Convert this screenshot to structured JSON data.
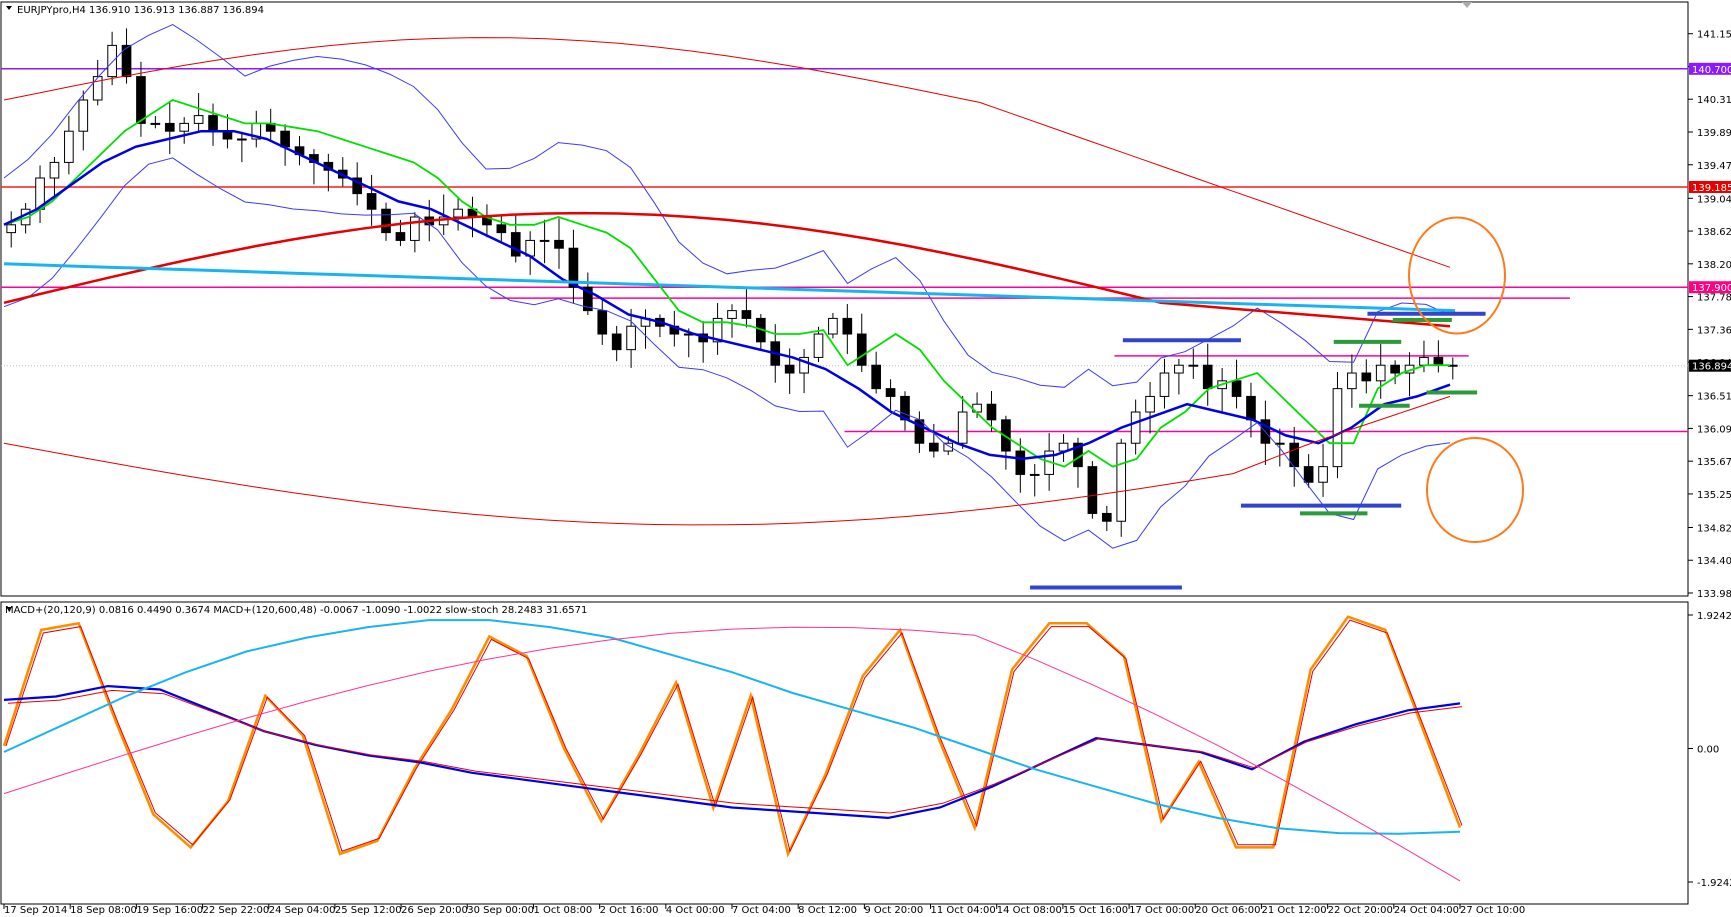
{
  "header": {
    "main_info": "EURJPYpro,H4  136.910 136.913 136.887 136.894",
    "indicator_info": "MACD+(20,120,9) 0.0816 0.4490 0.3674  MACD+(120,600,48) -0.0067 -1.0090 -1.0022  slow-stoch 28.2483 31.6571"
  },
  "colors": {
    "background": "#ffffff",
    "bull_candle": "#ffffff",
    "bear_candle": "#000000",
    "ema_fast": "#00e000",
    "ema_mid": "#0000e6",
    "ema_slow_red": "#e60000",
    "cyan_line": "#19b4f0",
    "magenta_level": "#ff0099",
    "purple_level": "#8c1aff",
    "red_level": "#ff1a1a",
    "orange_circle": "#ff7a1a",
    "price_label_bg": "#000000",
    "purple_label_bg": "#8c1aff",
    "red_label_bg": "#e60000",
    "magenta_label_bg": "#ff0080"
  },
  "chart_data": [
    {
      "type": "candlestick",
      "symbol": "EURJPYpro",
      "timeframe": "H4",
      "ylim": [
        133.98,
        141.3
      ],
      "y_ticks": [
        "141.150",
        "140.730",
        "140.310",
        "139.890",
        "139.470",
        "139.040",
        "138.620",
        "138.200",
        "137.780",
        "137.360",
        "136.940",
        "136.510",
        "136.090",
        "135.670",
        "135.250",
        "134.820",
        "134.400",
        "133.980"
      ],
      "x_ticks": [
        "17 Sep 2014",
        "18 Sep 08:00",
        "19 Sep 16:00",
        "22 Sep 22:00",
        "24 Sep 04:00",
        "25 Sep 12:00",
        "26 Sep 20:00",
        "30 Sep 00:00",
        "1 Oct 08:00",
        "2 Oct 16:00",
        "4 Oct 00:00",
        "7 Oct 04:00",
        "8 Oct 12:00",
        "9 Oct 20:00",
        "11 Oct 04:00",
        "14 Oct 08:00",
        "15 Oct 16:00",
        "17 Oct 00:00",
        "20 Oct 06:00",
        "21 Oct 12:00",
        "22 Oct 20:00",
        "24 Oct 04:00",
        "27 Oct 10:00"
      ],
      "price_tags": [
        {
          "value": 140.7,
          "text": "140.700",
          "color": "#8c1aff"
        },
        {
          "value": 139.185,
          "text": "139.185",
          "color": "#e60000"
        },
        {
          "value": 137.9,
          "text": "137.900",
          "color": "#ff0080"
        },
        {
          "value": 136.894,
          "text": "136.894",
          "color": "#000000"
        }
      ],
      "horizontal_levels": [
        {
          "value": 140.7,
          "color": "#8c1aff",
          "x_from": 0.0,
          "x_to": 1.0
        },
        {
          "value": 139.185,
          "color": "#ff1a1a",
          "x_from": 0.0,
          "x_to": 1.0
        },
        {
          "value": 137.9,
          "color": "#ff0099",
          "x_from": 0.0,
          "x_to": 1.0
        },
        {
          "value": 137.76,
          "color": "#ff0099",
          "x_from": 0.29,
          "x_to": 0.93
        },
        {
          "value": 137.02,
          "color": "#ff0099",
          "x_from": 0.66,
          "x_to": 0.87
        },
        {
          "value": 136.05,
          "color": "#ff0099",
          "x_from": 0.5,
          "x_to": 1.0
        },
        {
          "value": 136.894,
          "color": "#c0c0c0",
          "dotted": true,
          "x_from": 0.0,
          "x_to": 1.0
        }
      ],
      "marker_bars": [
        {
          "value": 137.22,
          "color": "#3344cc",
          "x_from": 0.665,
          "x_to": 0.735
        },
        {
          "value": 137.56,
          "color": "#3344cc",
          "x_from": 0.81,
          "x_to": 0.88
        },
        {
          "value": 137.2,
          "color": "#2a9a3a",
          "x_from": 0.79,
          "x_to": 0.83
        },
        {
          "value": 137.48,
          "color": "#2a9a3a",
          "x_from": 0.825,
          "x_to": 0.86
        },
        {
          "value": 136.55,
          "color": "#2a9a3a",
          "x_from": 0.845,
          "x_to": 0.875
        },
        {
          "value": 136.38,
          "color": "#2a9a3a",
          "x_from": 0.805,
          "x_to": 0.835
        },
        {
          "value": 135.1,
          "color": "#3344cc",
          "x_from": 0.735,
          "x_to": 0.83
        },
        {
          "value": 135.0,
          "color": "#2a9a3a",
          "x_from": 0.77,
          "x_to": 0.81
        },
        {
          "value": 134.05,
          "color": "#3344cc",
          "x_from": 0.61,
          "x_to": 0.7
        }
      ],
      "ohlc_close_path": [
        138.7,
        138.9,
        139.3,
        139.5,
        139.9,
        140.3,
        140.6,
        141.0,
        140.6,
        140.0,
        140.0,
        139.9,
        140.0,
        140.1,
        139.9,
        139.8,
        139.8,
        140.0,
        139.9,
        139.7,
        139.6,
        139.5,
        139.4,
        139.3,
        139.1,
        138.9,
        138.6,
        138.5,
        138.8,
        138.7,
        138.8,
        138.9,
        138.8,
        138.7,
        138.6,
        138.3,
        138.5,
        138.5,
        138.4,
        137.9,
        137.6,
        137.3,
        137.1,
        137.4,
        137.5,
        137.4,
        137.3,
        137.3,
        137.2,
        137.5,
        137.6,
        137.5,
        137.2,
        136.9,
        136.8,
        137.0,
        137.3,
        137.5,
        137.3,
        136.9,
        136.6,
        136.5,
        136.2,
        135.9,
        135.8,
        135.9,
        136.3,
        136.4,
        136.2,
        135.8,
        135.5,
        135.5,
        135.8,
        135.9,
        135.6,
        135.0,
        134.9,
        135.9,
        136.3,
        136.5,
        136.8,
        136.9,
        136.9,
        136.6,
        136.7,
        136.5,
        136.2,
        135.9,
        135.9,
        135.6,
        135.4,
        135.6,
        136.6,
        136.8,
        136.7,
        136.9,
        136.8,
        136.9,
        137.0,
        136.9,
        136.9
      ],
      "series_ma": [
        {
          "color": "#00e000",
          "values": [
            138.7,
            138.8,
            139.0,
            139.3,
            139.6,
            139.9,
            140.1,
            140.3,
            140.2,
            140.1,
            140.0,
            140.0,
            139.95,
            139.9,
            139.8,
            139.7,
            139.6,
            139.5,
            139.3,
            139.0,
            138.8,
            138.7,
            138.7,
            138.8,
            138.7,
            138.6,
            138.4,
            138.0,
            137.6,
            137.45,
            137.45,
            137.4,
            137.3,
            137.3,
            137.35,
            136.9,
            137.1,
            137.3,
            137.1,
            136.7,
            136.4,
            136.1,
            135.9,
            135.7,
            135.6,
            135.8,
            135.6,
            135.7,
            136.1,
            136.3,
            136.6,
            136.7,
            136.8,
            136.5,
            136.2,
            135.9,
            135.9,
            136.6,
            136.8,
            136.9,
            136.9
          ]
        },
        {
          "color": "#0000e6",
          "values": [
            138.7,
            138.9,
            139.2,
            139.5,
            139.7,
            139.8,
            139.9,
            139.9,
            139.8,
            139.6,
            139.4,
            139.2,
            139.0,
            138.9,
            138.7,
            138.5,
            138.3,
            138.0,
            137.8,
            137.55,
            137.45,
            137.3,
            137.2,
            137.1,
            137.0,
            136.85,
            136.6,
            136.3,
            136.1,
            135.9,
            135.75,
            135.7,
            135.75,
            135.9,
            136.1,
            136.25,
            136.4,
            136.3,
            136.2,
            136.0,
            135.9,
            136.1,
            136.4,
            136.5,
            136.65
          ]
        }
      ],
      "series_bollinger": [
        {
          "name_hidden": "upper",
          "color": "#3a3aff"
        },
        {
          "name_hidden": "lower",
          "color": "#3a3aff"
        }
      ],
      "series_long": [
        {
          "color": "#e60000",
          "shape": "arc-200"
        },
        {
          "color": "#19b4f0",
          "shape": "declining"
        },
        {
          "color": "#e60000",
          "shape": "envelope"
        }
      ]
    },
    {
      "type": "line",
      "ylim": [
        -1.9242,
        1.9242
      ],
      "y_ticks": [
        "1.9242",
        "0.00",
        "-1.9242"
      ],
      "series": [
        {
          "color": "#ff8c00",
          "values": [
            2,
            90,
            95,
            20,
            -50,
            -75,
            -40,
            40,
            10,
            -80,
            -70,
            -15,
            30,
            85,
            70,
            0,
            -55,
            -5,
            50,
            -45,
            40,
            -80,
            -20,
            55,
            90,
            10,
            -60,
            60,
            95,
            95,
            70,
            -55,
            -10,
            -75,
            -75,
            60,
            100,
            90,
            15,
            -60
          ]
        },
        {
          "color": "#0000e6",
          "values": [
            0.7,
            0.75,
            0.9,
            0.85,
            0.55,
            0.25,
            0.05,
            -0.1,
            -0.2,
            -0.35,
            -0.45,
            -0.55,
            -0.65,
            -0.75,
            -0.85,
            -0.9,
            -0.95,
            -1.0,
            -0.85,
            -0.55,
            -0.2,
            0.15,
            0.05,
            -0.05,
            -0.3,
            0.1,
            0.35,
            0.55,
            0.65
          ]
        },
        {
          "color": "#19b4f0",
          "values": [
            -0.05,
            0.35,
            0.75,
            1.1,
            1.4,
            1.6,
            1.75,
            1.85,
            1.85,
            1.75,
            1.6,
            1.35,
            1.1,
            0.8,
            0.55,
            0.3,
            0.0,
            -0.3,
            -0.55,
            -0.8,
            -1.0,
            -1.15,
            -1.22,
            -1.23,
            -1.2
          ]
        }
      ]
    }
  ]
}
